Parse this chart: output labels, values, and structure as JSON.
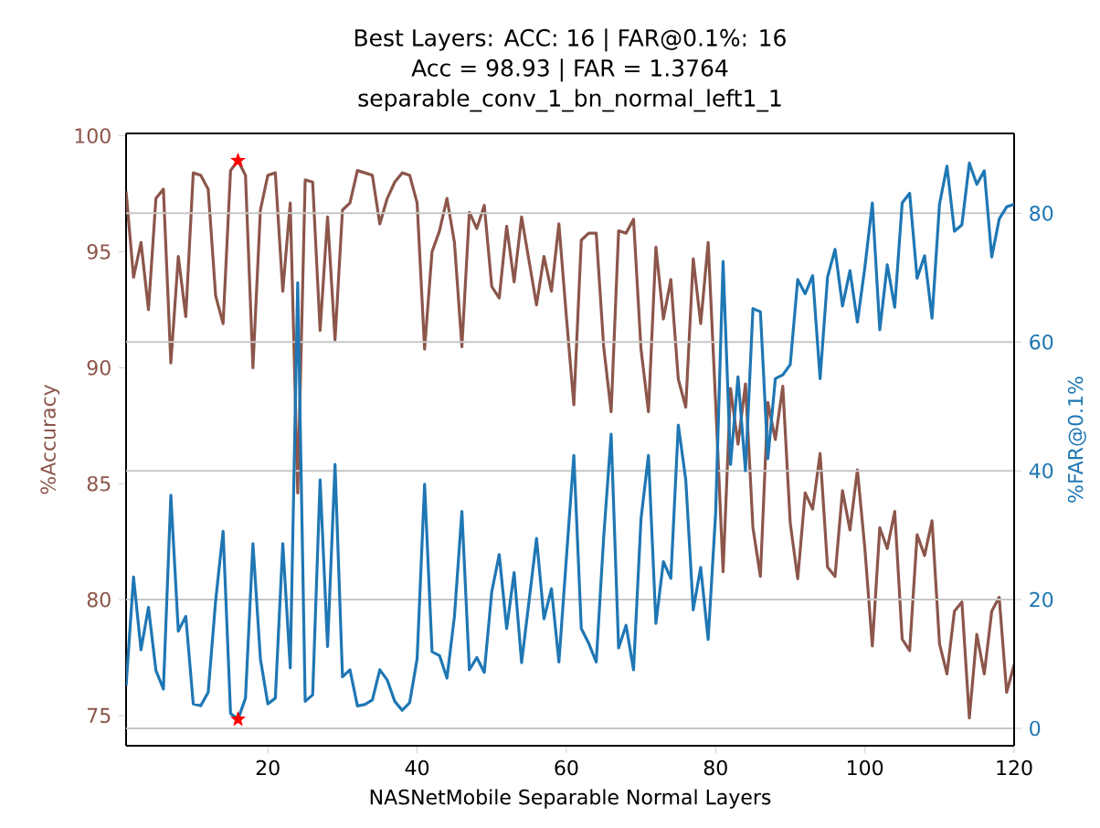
{
  "chart_data": {
    "type": "line",
    "title": "Best Layers: ACC: 16 | FAR@0.1%: 16",
    "subtitle": "Acc = 98.93 | FAR = 1.3764",
    "annotations": [
      "separable_conv_1_bn_normal_left1_1"
    ],
    "xlabel": "NASNetMobile Separable Normal Layers",
    "ylabel": "%Accuracy",
    "y2label": "%FAR@0.1%",
    "x": [
      1,
      2,
      3,
      4,
      5,
      6,
      7,
      8,
      9,
      10,
      11,
      12,
      13,
      14,
      15,
      16,
      17,
      18,
      19,
      20,
      21,
      22,
      23,
      24,
      25,
      26,
      27,
      28,
      29,
      30,
      31,
      32,
      33,
      34,
      35,
      36,
      37,
      38,
      39,
      40,
      41,
      42,
      43,
      44,
      45,
      46,
      47,
      48,
      49,
      50,
      51,
      52,
      53,
      54,
      55,
      56,
      57,
      58,
      59,
      60,
      61,
      62,
      63,
      64,
      65,
      66,
      67,
      68,
      69,
      70,
      71,
      72,
      73,
      74,
      75,
      76,
      77,
      78,
      79,
      80,
      81,
      82,
      83,
      84,
      85,
      86,
      87,
      88,
      89,
      90,
      91,
      92,
      93,
      94,
      95,
      96,
      97,
      98,
      99,
      100,
      101,
      102,
      103,
      104,
      105,
      106,
      107,
      108,
      109,
      110,
      111,
      112,
      113,
      114,
      115,
      116,
      117,
      118,
      119,
      120
    ],
    "series": [
      {
        "axis": "y",
        "color": "#8c564b",
        "marker": "none",
        "values": [
          97.6,
          93.9,
          95.4,
          92.5,
          97.3,
          97.7,
          90.2,
          94.8,
          92.2,
          98.4,
          98.3,
          97.7,
          93.1,
          91.9,
          98.5,
          98.93,
          98.3,
          90.0,
          96.8,
          98.3,
          98.4,
          93.3,
          97.1,
          84.6,
          98.1,
          98.0,
          91.6,
          96.5,
          91.2,
          96.8,
          97.1,
          98.5,
          98.4,
          98.3,
          96.2,
          97.3,
          98.0,
          98.4,
          98.3,
          97.1,
          90.8,
          95.0,
          95.9,
          97.3,
          95.4,
          90.9,
          96.7,
          96.0,
          97.0,
          93.5,
          93.0,
          96.1,
          93.7,
          96.5,
          94.6,
          92.7,
          94.8,
          93.3,
          96.2,
          92.2,
          88.4,
          95.5,
          95.8,
          95.8,
          90.9,
          88.1,
          95.9,
          95.8,
          96.4,
          90.8,
          88.1,
          95.2,
          92.1,
          93.8,
          89.5,
          88.3,
          94.7,
          91.9,
          95.4,
          88.5,
          81.2,
          89.1,
          86.7,
          89.3,
          83.1,
          81.0,
          88.5,
          86.9,
          89.2,
          83.3,
          80.9,
          84.6,
          83.9,
          86.3,
          81.4,
          81.0,
          84.7,
          83.0,
          85.6,
          82.2,
          78.0,
          83.1,
          82.2,
          83.8,
          78.3,
          77.8,
          82.8,
          81.9,
          83.4,
          78.1,
          76.8,
          79.5,
          79.9,
          74.9,
          78.5,
          76.8,
          79.5,
          80.1,
          76.0,
          77.2
        ]
      },
      {
        "axis": "y2",
        "color": "#1f77b4",
        "marker": "none",
        "values": [
          6.6,
          23.5,
          12.2,
          18.8,
          9.0,
          6.1,
          36.2,
          15.1,
          17.4,
          3.8,
          3.5,
          5.6,
          19.8,
          30.6,
          2.3,
          1.4,
          4.7,
          28.7,
          10.8,
          3.8,
          4.7,
          28.7,
          9.4,
          69.2,
          4.2,
          5.2,
          38.6,
          12.7,
          41.0,
          8.0,
          9.1,
          3.5,
          3.7,
          4.4,
          9.1,
          7.5,
          4.2,
          2.8,
          4.0,
          10.8,
          37.9,
          11.9,
          11.3,
          7.8,
          17.4,
          33.7,
          9.1,
          11.0,
          8.7,
          21.2,
          27.0,
          15.5,
          24.2,
          10.2,
          19.8,
          29.5,
          17.0,
          21.7,
          10.3,
          26.4,
          42.4,
          15.5,
          13.2,
          10.3,
          29.7,
          45.7,
          12.5,
          16.0,
          9.1,
          32.5,
          42.4,
          16.3,
          25.9,
          23.3,
          47.1,
          38.6,
          18.4,
          25.0,
          13.8,
          33.4,
          72.5,
          41.0,
          54.6,
          40.0,
          65.2,
          64.7,
          41.9,
          54.3,
          54.9,
          56.5,
          69.7,
          67.5,
          70.3,
          54.3,
          70.1,
          74.4,
          65.6,
          71.1,
          63.1,
          71.6,
          81.6,
          61.9,
          72.0,
          65.4,
          81.6,
          83.1,
          69.9,
          73.4,
          63.7,
          81.4,
          87.3,
          77.2,
          78.2,
          87.8,
          84.5,
          86.6,
          73.2,
          79.1,
          81.0,
          81.4
        ]
      },
      {
        "type": "scatter",
        "axis": "y",
        "color": "#ff0000",
        "marker": "star",
        "x": [
          16
        ],
        "values": [
          98.93
        ]
      },
      {
        "type": "scatter",
        "axis": "y2",
        "color": "#ff0000",
        "marker": "star",
        "x": [
          16
        ],
        "values": [
          1.4
        ]
      }
    ],
    "xlim": [
      1,
      120
    ],
    "xticks": [
      20,
      40,
      60,
      80,
      100,
      120
    ],
    "ylim": [
      73.7,
      100.1
    ],
    "yticks": [
      75,
      80,
      85,
      90,
      95,
      100
    ],
    "y2lim": [
      -2.7,
      92.4
    ],
    "y2ticks": [
      0,
      20,
      40,
      60,
      80
    ],
    "grid": "y"
  }
}
